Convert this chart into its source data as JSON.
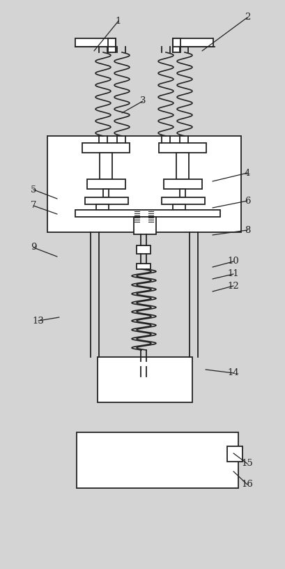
{
  "bg_color": "#d4d4d4",
  "line_color": "#222222",
  "fig_w": 4.1,
  "fig_h": 8.16,
  "dpi": 100,
  "annotations": [
    [
      "1",
      170,
      30,
      135,
      73
    ],
    [
      "2",
      355,
      25,
      290,
      73
    ],
    [
      "3",
      205,
      145,
      175,
      162
    ],
    [
      "4",
      355,
      248,
      305,
      260
    ],
    [
      "5",
      48,
      272,
      82,
      285
    ],
    [
      "6",
      355,
      288,
      305,
      298
    ],
    [
      "7",
      48,
      295,
      82,
      307
    ],
    [
      "8",
      355,
      330,
      305,
      337
    ],
    [
      "9",
      48,
      355,
      82,
      368
    ],
    [
      "10",
      335,
      375,
      305,
      383
    ],
    [
      "11",
      335,
      393,
      305,
      400
    ],
    [
      "12",
      335,
      410,
      305,
      418
    ],
    [
      "13",
      55,
      460,
      85,
      455
    ],
    [
      "14",
      335,
      535,
      295,
      530
    ],
    [
      "15",
      355,
      665,
      335,
      650
    ],
    [
      "16",
      355,
      695,
      335,
      676
    ]
  ]
}
